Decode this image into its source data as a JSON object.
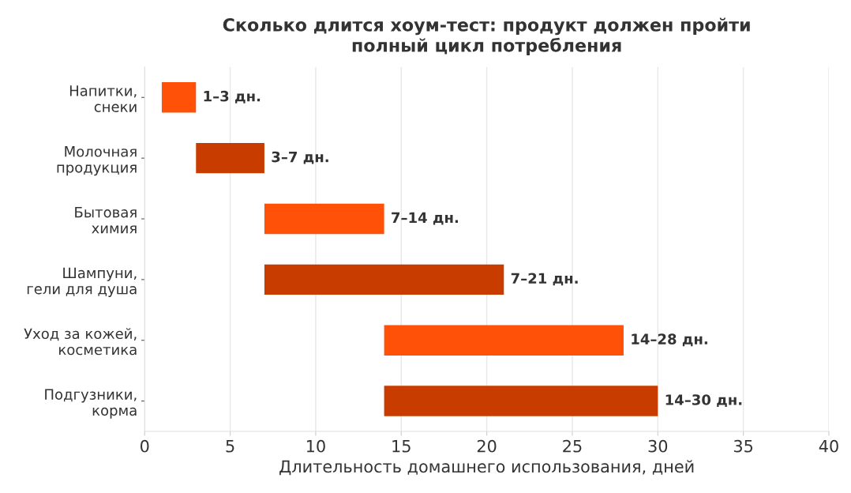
{
  "chart_data": {
    "type": "bar",
    "orientation": "horizontal",
    "title": "Сколько длится хоум-тест: продукт должен пройти\nполный цикл потребления",
    "xlabel": "Длительность домашнего использования, дней",
    "categories": [
      "Напитки,\nснеки",
      "Молочная\nпродукция",
      "Бытовая\nхимия",
      "Шампуни,\nгели для душа",
      "Уход за кожей,\nкосметика",
      "Подгузники,\nкорма"
    ],
    "base": [
      1,
      3,
      7,
      7,
      14,
      14
    ],
    "values": [
      2,
      4,
      7,
      14,
      14,
      16
    ],
    "colors": [
      "#ff5208",
      "#c83c00",
      "#ff5208",
      "#c83c00",
      "#ff5208",
      "#c83c00"
    ],
    "value_labels": [
      "1–3 дн.",
      "3–7 дн.",
      "7–14 дн.",
      "7–21 дн.",
      "14–28 дн.",
      "14–30 дн."
    ],
    "xlim": [
      0,
      40
    ],
    "xticks": [
      0,
      5,
      10,
      15,
      20,
      25,
      30,
      35,
      40
    ],
    "grid": "x"
  }
}
